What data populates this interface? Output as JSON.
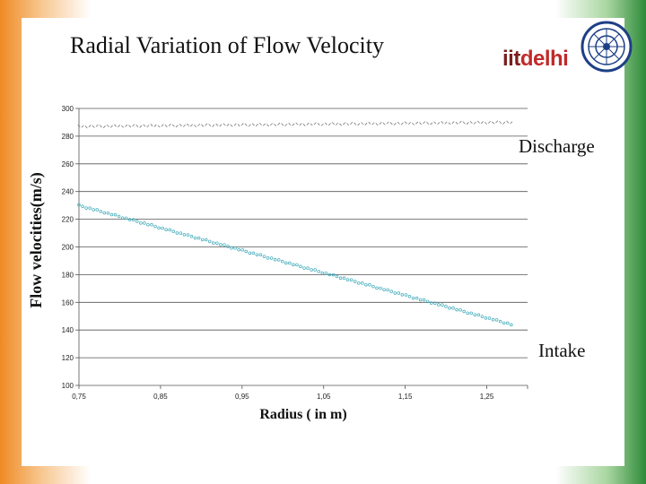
{
  "slide": {
    "title": "Radial Variation of Flow Velocity",
    "logo_text_a": "iit",
    "logo_text_b": "delhi"
  },
  "chart_data": {
    "type": "scatter",
    "xlabel": "Radius ( in m)",
    "ylabel": "Flow velocities(m/s)",
    "xlim": [
      0.75,
      1.3
    ],
    "ylim": [
      100,
      300
    ],
    "x_ticks": [
      0.75,
      0.85,
      0.95,
      1.05,
      1.15,
      1.25
    ],
    "x_tick_labels": [
      "0,75",
      "0,85",
      "0,95",
      "1,05",
      "1,15",
      "1,25"
    ],
    "y_ticks": [
      100,
      120,
      140,
      160,
      180,
      200,
      220,
      240,
      260,
      280,
      300
    ],
    "y_tick_labels": [
      "100",
      "120",
      "140",
      "160",
      "180",
      "200",
      "220",
      "240",
      "260",
      "280",
      "300"
    ],
    "grid": "horizontal",
    "annotations": [
      "Discharge",
      "Intake"
    ],
    "series": [
      {
        "name": "",
        "color": "#777777",
        "x_range": [
          0.75,
          1.28
        ],
        "y_start": 287,
        "y_end": 290,
        "count": 120
      },
      {
        "name": "",
        "color": "#3aa8b8",
        "x_range": [
          0.75,
          1.28
        ],
        "y_start": 230,
        "y_end": 144,
        "count": 120
      }
    ]
  }
}
